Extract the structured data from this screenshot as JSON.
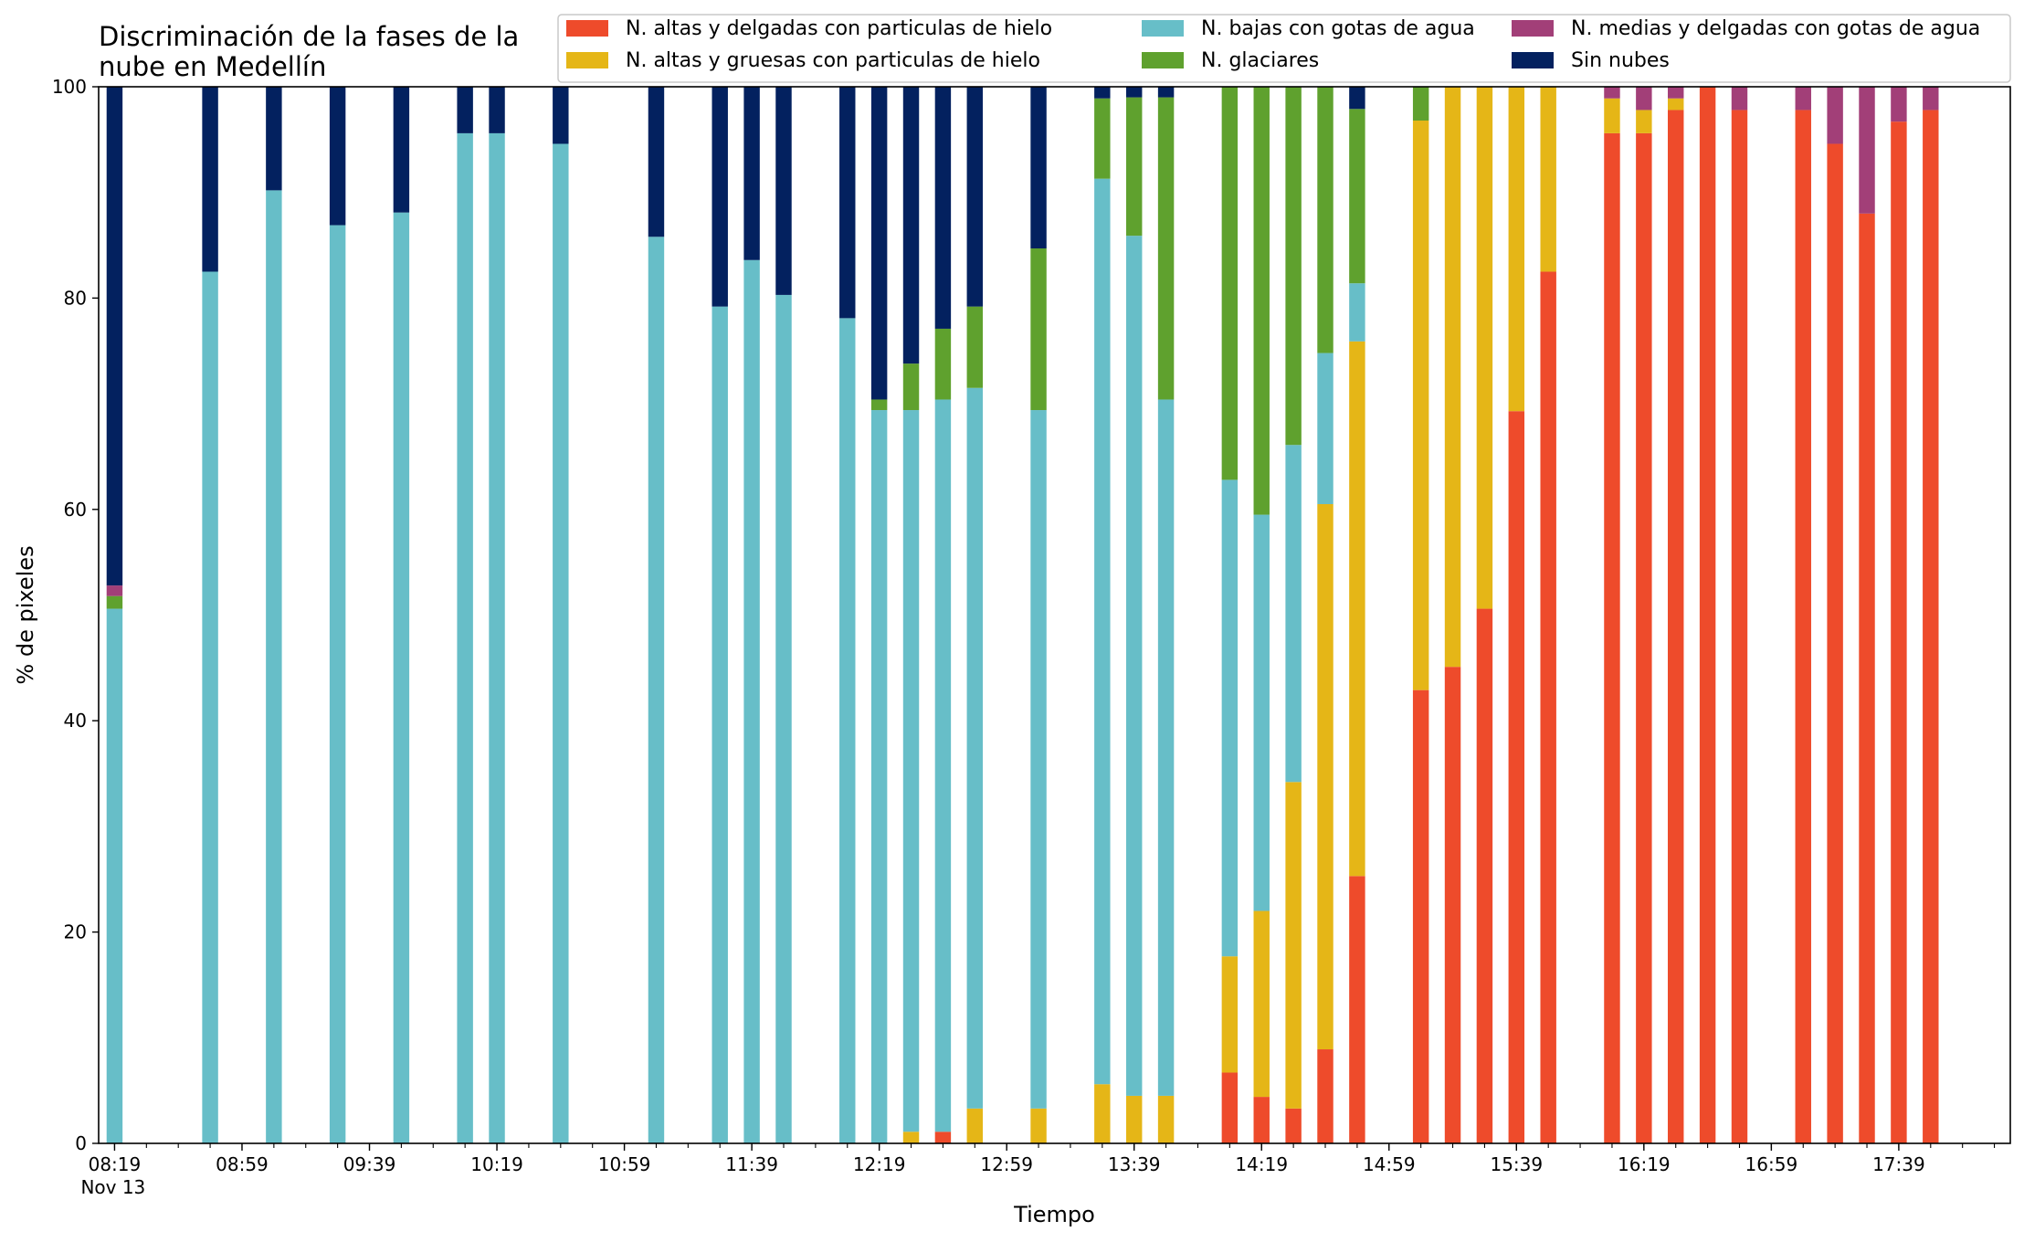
{
  "chart_data": {
    "type": "bar",
    "stacked": true,
    "title": [
      "Discriminación de la fases de la",
      "nube en Medellín"
    ],
    "xlabel": "Tiempo",
    "ylabel": "% de pixeles",
    "ylim": [
      0,
      100
    ],
    "xlim": [
      "08:14",
      "18:14"
    ],
    "y_ticks": [
      0,
      20,
      40,
      60,
      80,
      100
    ],
    "x_ticks": [
      "08:19",
      "08:59",
      "09:39",
      "10:19",
      "10:59",
      "11:39",
      "12:19",
      "12:59",
      "13:39",
      "14:19",
      "14:59",
      "15:39",
      "16:19",
      "16:59",
      "17:39"
    ],
    "x_tick_sublabel": "Nov 13",
    "grid": false,
    "legend_position": "top-right",
    "bar_width_minutes": 5,
    "series": [
      {
        "name": "N. altas y delgadas con particulas de hielo",
        "color": "#ee4b2b",
        "order": 1
      },
      {
        "name": "N. altas y gruesas con particulas de hielo",
        "color": "#e5b617",
        "order": 2
      },
      {
        "name": "N. bajas con gotas de agua",
        "color": "#67bec8",
        "order": 3
      },
      {
        "name": "N. glaciares",
        "color": "#5fa12e",
        "order": 4
      },
      {
        "name": "N. medias y delgadas con gotas de agua",
        "color": "#a23f78",
        "order": 5
      },
      {
        "name": "Sin nubes",
        "color": "#03215f",
        "order": 6
      }
    ],
    "bars": [
      {
        "x": "08:19",
        "values": [
          0,
          0,
          50.6,
          1.2,
          1,
          47.2
        ]
      },
      {
        "x": "08:49",
        "values": [
          0,
          0,
          82.5,
          0,
          0,
          17.5
        ]
      },
      {
        "x": "09:09",
        "values": [
          0,
          0,
          90.2,
          0,
          0,
          9.8
        ]
      },
      {
        "x": "09:29",
        "values": [
          0,
          0,
          86.9,
          0,
          0,
          13.1
        ]
      },
      {
        "x": "09:49",
        "values": [
          0,
          0,
          88.1,
          0,
          0,
          11.9
        ]
      },
      {
        "x": "10:09",
        "values": [
          0,
          0,
          95.6,
          0,
          0,
          4.4
        ]
      },
      {
        "x": "10:19",
        "values": [
          0,
          0,
          95.6,
          0,
          0,
          4.4
        ]
      },
      {
        "x": "10:39",
        "values": [
          0,
          0,
          94.6,
          0,
          0,
          5.4
        ]
      },
      {
        "x": "11:09",
        "values": [
          0,
          0,
          85.8,
          0,
          0,
          14.2
        ]
      },
      {
        "x": "11:29",
        "values": [
          0,
          0,
          79.2,
          0,
          0,
          20.8
        ]
      },
      {
        "x": "11:39",
        "values": [
          0,
          0,
          83.6,
          0,
          0,
          16.4
        ]
      },
      {
        "x": "11:49",
        "values": [
          0,
          0,
          80.3,
          0,
          0,
          19.7
        ]
      },
      {
        "x": "12:09",
        "values": [
          0,
          0,
          78.1,
          0,
          0,
          21.9
        ]
      },
      {
        "x": "12:19",
        "values": [
          0,
          0,
          69.4,
          1,
          0,
          29.6
        ]
      },
      {
        "x": "12:29",
        "values": [
          0,
          1.1,
          68.3,
          4.4,
          0,
          26.2
        ]
      },
      {
        "x": "12:39",
        "values": [
          1.1,
          0,
          69.3,
          6.7,
          0,
          22.9
        ]
      },
      {
        "x": "12:49",
        "values": [
          0,
          3.3,
          68.2,
          7.7,
          0,
          20.8
        ]
      },
      {
        "x": "13:09",
        "values": [
          0,
          3.3,
          66.1,
          15.3,
          0,
          15.3
        ]
      },
      {
        "x": "13:29",
        "values": [
          0,
          5.6,
          85.7,
          7.6,
          0,
          1.1
        ]
      },
      {
        "x": "13:39",
        "values": [
          0,
          4.5,
          81.4,
          13.1,
          0,
          1
        ]
      },
      {
        "x": "13:49",
        "values": [
          0,
          4.5,
          65.9,
          28.6,
          0,
          1
        ]
      },
      {
        "x": "14:09",
        "values": [
          6.7,
          11,
          45.1,
          37.2,
          0,
          0
        ]
      },
      {
        "x": "14:19",
        "values": [
          4.4,
          17.6,
          37.5,
          40.5,
          0,
          0
        ]
      },
      {
        "x": "14:29",
        "values": [
          3.3,
          30.9,
          31.9,
          33.9,
          0,
          0
        ]
      },
      {
        "x": "14:39",
        "values": [
          8.9,
          51.6,
          14.3,
          25.2,
          0,
          0
        ]
      },
      {
        "x": "14:49",
        "values": [
          25.3,
          50.6,
          5.5,
          16.5,
          0,
          2.1
        ]
      },
      {
        "x": "15:09",
        "values": [
          42.9,
          53.9,
          0,
          3.2,
          0,
          0
        ]
      },
      {
        "x": "15:19",
        "values": [
          45.1,
          54.9,
          0,
          0,
          0,
          0
        ]
      },
      {
        "x": "15:29",
        "values": [
          50.6,
          49.4,
          0,
          0,
          0,
          0
        ]
      },
      {
        "x": "15:39",
        "values": [
          69.3,
          30.7,
          0,
          0,
          0,
          0
        ]
      },
      {
        "x": "15:49",
        "values": [
          82.5,
          17.5,
          0,
          0,
          0,
          0
        ]
      },
      {
        "x": "16:09",
        "values": [
          95.6,
          3.3,
          0,
          0,
          1.1,
          0
        ]
      },
      {
        "x": "16:19",
        "values": [
          95.6,
          2.2,
          0,
          0,
          2.2,
          0
        ]
      },
      {
        "x": "16:29",
        "values": [
          97.8,
          1.1,
          0,
          0,
          1.1,
          0
        ]
      },
      {
        "x": "16:39",
        "values": [
          100,
          0,
          0,
          0,
          0,
          0
        ]
      },
      {
        "x": "16:49",
        "values": [
          97.8,
          0,
          0,
          0,
          2.2,
          0
        ]
      },
      {
        "x": "17:09",
        "values": [
          97.8,
          0,
          0,
          0,
          2.2,
          0
        ]
      },
      {
        "x": "17:19",
        "values": [
          94.6,
          0,
          0,
          0,
          5.4,
          0
        ]
      },
      {
        "x": "17:29",
        "values": [
          88,
          0,
          0,
          0,
          12,
          0
        ]
      },
      {
        "x": "17:39",
        "values": [
          96.7,
          0,
          0,
          0,
          3.3,
          0
        ]
      },
      {
        "x": "17:49",
        "values": [
          97.8,
          0,
          0,
          0,
          2.2,
          0
        ]
      }
    ]
  }
}
